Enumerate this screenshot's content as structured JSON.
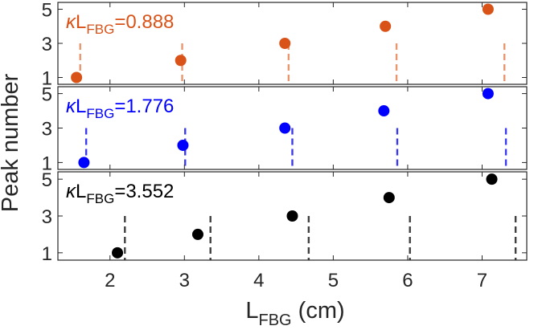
{
  "chart_data": {
    "type": "scatter",
    "xlabel": {
      "main": "L",
      "sub": "FBG",
      "unit": " (cm)"
    },
    "ylabel": "Peak number",
    "xlim": [
      1.3,
      7.6
    ],
    "ylim": [
      0.6,
      5.4
    ],
    "x_ticks": [
      "2",
      "3",
      "4",
      "5",
      "6",
      "7"
    ],
    "y_ticks": [
      "1",
      "3",
      "5"
    ],
    "panels": [
      {
        "color": "#d95319",
        "label": {
          "kappa": "κ",
          "main": "L",
          "sub": "FBG",
          "value": "=0.888"
        },
        "points": [
          [
            1.55,
            1
          ],
          [
            2.95,
            2
          ],
          [
            4.35,
            3
          ],
          [
            5.7,
            4
          ],
          [
            7.08,
            5
          ]
        ],
        "dashed_lines": [
          1.6,
          2.97,
          4.4,
          5.85,
          7.3
        ],
        "dash_color": "#e8976f"
      },
      {
        "color": "#0000ff",
        "label": {
          "kappa": "κ",
          "main": "L",
          "sub": "FBG",
          "value": "=1.776"
        },
        "points": [
          [
            1.65,
            1
          ],
          [
            2.98,
            2
          ],
          [
            4.35,
            3
          ],
          [
            5.68,
            4
          ],
          [
            7.08,
            5
          ]
        ],
        "dashed_lines": [
          1.68,
          3.01,
          4.45,
          5.86,
          7.32
        ],
        "dash_color": "#3a3af0"
      },
      {
        "color": "#000000",
        "label": {
          "kappa": "κ",
          "main": "L",
          "sub": "FBG",
          "value": "=3.552"
        },
        "points": [
          [
            2.1,
            1
          ],
          [
            3.18,
            2
          ],
          [
            4.45,
            3
          ],
          [
            5.75,
            4
          ],
          [
            7.13,
            5
          ]
        ],
        "dashed_lines": [
          2.2,
          3.35,
          4.67,
          6.03,
          7.45
        ],
        "dash_color": "#404040"
      }
    ]
  }
}
